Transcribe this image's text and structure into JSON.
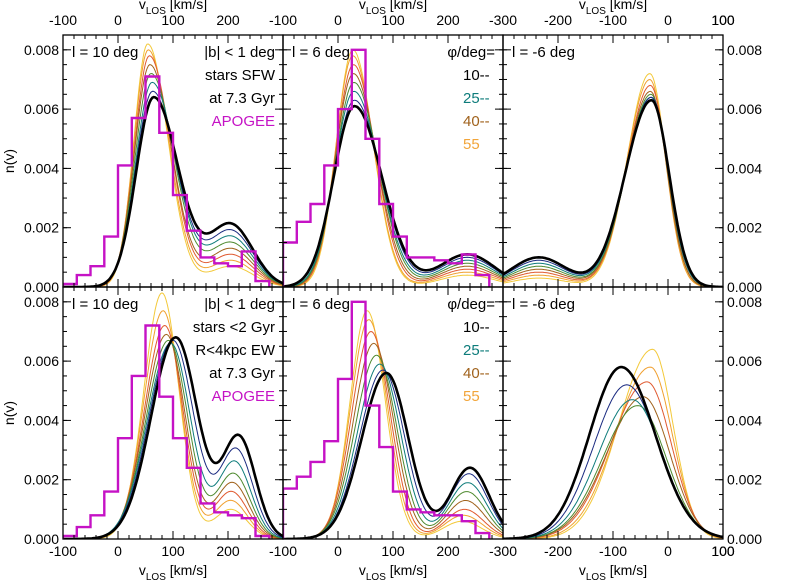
{
  "chart_data": {
    "type": "line",
    "layout": "2 rows x 3 columns of panels sharing axes",
    "colors": {
      "phi10": "#000080",
      "phi25": "#0e7c7b",
      "phi40": "#a0621c",
      "phi55": "#f2a53a",
      "apogee": "#c512c5",
      "thick": "#000000"
    },
    "axes": {
      "xlabel_main": "v",
      "xlabel_sub": "LOS",
      "xlabel_unit": "[km/s]",
      "ylabel": "n(v)",
      "ylim": [
        0,
        0.0085
      ],
      "yticks": [
        "0.000",
        "0.002",
        "0.004",
        "0.006",
        "0.008"
      ],
      "ytick_values": [
        0,
        0.002,
        0.004,
        0.006,
        0.008
      ],
      "columns": [
        {
          "xlim": [
            -100,
            300
          ],
          "xticks": [
            -100,
            0,
            100,
            200
          ]
        },
        {
          "xlim": [
            -100,
            300
          ],
          "xticks": [
            -100,
            0,
            100,
            200
          ]
        },
        {
          "xlim": [
            -300,
            100
          ],
          "xticks": [
            -300,
            -200,
            -100,
            0,
            100
          ]
        }
      ]
    },
    "legend": {
      "title": "φ/deg=",
      "entries": [
        {
          "label": "10--",
          "color": "#000000"
        },
        {
          "label": "25--",
          "color": "#0e7c7b"
        },
        {
          "label": "40--",
          "color": "#a0621c"
        },
        {
          "label": "55",
          "color": "#f2a53a"
        }
      ]
    },
    "series_colors": [
      "#000000",
      "#1a2a80",
      "#0e7c7b",
      "#4e8a2f",
      "#a0621c",
      "#e05a30",
      "#f0a030",
      "#f3c93a"
    ],
    "panels": [
      {
        "row": 0,
        "col": 0,
        "label": "l = 10 deg",
        "notes": [
          "|b| < 1 deg",
          "stars SFW",
          "at 7.3 Gyr",
          "APOGEE"
        ],
        "note_colors": [
          "#000000",
          "#000000",
          "#000000",
          "#c512c5"
        ],
        "curves": [
          {
            "mu": 65,
            "sigma_l": 32,
            "sigma_r": 45,
            "peak": 0.0064,
            "tail_c": 205,
            "tail_w": 40,
            "tail_h": 0.0021,
            "thick": true
          },
          {
            "mu": 63,
            "sigma_l": 31,
            "sigma_r": 44,
            "peak": 0.0066,
            "tail_c": 205,
            "tail_w": 40,
            "tail_h": 0.0019
          },
          {
            "mu": 62,
            "sigma_l": 30,
            "sigma_r": 43,
            "peak": 0.0069,
            "tail_c": 205,
            "tail_w": 40,
            "tail_h": 0.0017
          },
          {
            "mu": 60,
            "sigma_l": 29,
            "sigma_r": 42,
            "peak": 0.0072,
            "tail_c": 205,
            "tail_w": 40,
            "tail_h": 0.0015
          },
          {
            "mu": 58,
            "sigma_l": 28,
            "sigma_r": 40,
            "peak": 0.0075,
            "tail_c": 205,
            "tail_w": 40,
            "tail_h": 0.0013
          },
          {
            "mu": 57,
            "sigma_l": 27,
            "sigma_r": 39,
            "peak": 0.0078,
            "tail_c": 205,
            "tail_w": 40,
            "tail_h": 0.0011
          },
          {
            "mu": 55,
            "sigma_l": 26,
            "sigma_r": 38,
            "peak": 0.008,
            "tail_c": 205,
            "tail_w": 40,
            "tail_h": 0.0009
          },
          {
            "mu": 54,
            "sigma_l": 25,
            "sigma_r": 37,
            "peak": 0.0082,
            "tail_c": 205,
            "tail_w": 40,
            "tail_h": 0.0007
          }
        ],
        "histogram": {
          "edges": [
            -100,
            -75,
            -50,
            -25,
            0,
            25,
            50,
            75,
            100,
            125,
            150,
            175,
            200,
            225,
            250,
            275
          ],
          "counts": [
            0.0001,
            0.0004,
            0.0007,
            0.0017,
            0.0041,
            0.0057,
            0.0071,
            0.0052,
            0.0031,
            0.0019,
            0.001,
            0.0008,
            0.0007,
            0.0012,
            0.0002
          ]
        }
      },
      {
        "row": 0,
        "col": 1,
        "label": "l = 6 deg",
        "notes": [],
        "legend": true,
        "curves": [
          {
            "mu": 30,
            "sigma_l": 38,
            "sigma_r": 50,
            "peak": 0.0061,
            "tail_c": 235,
            "tail_w": 50,
            "tail_h": 0.0011,
            "thick": true
          },
          {
            "mu": 30,
            "sigma_l": 37,
            "sigma_r": 48,
            "peak": 0.0063,
            "tail_c": 235,
            "tail_w": 50,
            "tail_h": 0.001
          },
          {
            "mu": 29,
            "sigma_l": 35,
            "sigma_r": 46,
            "peak": 0.0066,
            "tail_c": 235,
            "tail_w": 50,
            "tail_h": 0.0009
          },
          {
            "mu": 29,
            "sigma_l": 34,
            "sigma_r": 44,
            "peak": 0.0069,
            "tail_c": 235,
            "tail_w": 50,
            "tail_h": 0.0008
          },
          {
            "mu": 28,
            "sigma_l": 33,
            "sigma_r": 42,
            "peak": 0.0072,
            "tail_c": 235,
            "tail_w": 50,
            "tail_h": 0.0007
          },
          {
            "mu": 28,
            "sigma_l": 32,
            "sigma_r": 40,
            "peak": 0.0075,
            "tail_c": 235,
            "tail_w": 50,
            "tail_h": 0.0006
          },
          {
            "mu": 27,
            "sigma_l": 31,
            "sigma_r": 38,
            "peak": 0.0078,
            "tail_c": 235,
            "tail_w": 50,
            "tail_h": 0.0005
          },
          {
            "mu": 27,
            "sigma_l": 30,
            "sigma_r": 37,
            "peak": 0.008,
            "tail_c": 235,
            "tail_w": 50,
            "tail_h": 0.0004
          }
        ],
        "histogram": {
          "edges": [
            -100,
            -75,
            -50,
            -25,
            0,
            25,
            50,
            75,
            100,
            125,
            150,
            175,
            200,
            225,
            250,
            275
          ],
          "counts": [
            0.0015,
            0.0022,
            0.0028,
            0.0041,
            0.006,
            0.008,
            0.005,
            0.0028,
            0.0017,
            0.001,
            0.001,
            0.0009,
            0.0008,
            0.0011,
            0.0004
          ]
        }
      },
      {
        "row": 0,
        "col": 2,
        "label": "l = -6 deg",
        "notes": [],
        "curves": [
          {
            "mu": -30,
            "sigma_l": 48,
            "sigma_r": 32,
            "peak": 0.0063,
            "tail_c": -235,
            "tail_w": 50,
            "tail_h": 0.001,
            "thick": true
          },
          {
            "mu": -30,
            "sigma_l": 47,
            "sigma_r": 32,
            "peak": 0.0064,
            "tail_c": -235,
            "tail_w": 50,
            "tail_h": 0.0009
          },
          {
            "mu": -31,
            "sigma_l": 46,
            "sigma_r": 31,
            "peak": 0.0064,
            "tail_c": -235,
            "tail_w": 50,
            "tail_h": 0.0008
          },
          {
            "mu": -31,
            "sigma_l": 45,
            "sigma_r": 31,
            "peak": 0.0065,
            "tail_c": -235,
            "tail_w": 50,
            "tail_h": 0.0007
          },
          {
            "mu": -32,
            "sigma_l": 44,
            "sigma_r": 30,
            "peak": 0.0066,
            "tail_c": -235,
            "tail_w": 50,
            "tail_h": 0.0006
          },
          {
            "mu": -32,
            "sigma_l": 43,
            "sigma_r": 30,
            "peak": 0.0068,
            "tail_c": -235,
            "tail_w": 50,
            "tail_h": 0.0005
          },
          {
            "mu": -33,
            "sigma_l": 42,
            "sigma_r": 29,
            "peak": 0.007,
            "tail_c": -235,
            "tail_w": 50,
            "tail_h": 0.0004
          },
          {
            "mu": -33,
            "sigma_l": 41,
            "sigma_r": 29,
            "peak": 0.0072,
            "tail_c": -235,
            "tail_w": 50,
            "tail_h": 0.0003
          }
        ]
      },
      {
        "row": 1,
        "col": 0,
        "label": "l = 10 deg",
        "notes": [
          "|b| < 1 deg",
          "stars <2 Gyr",
          "R<4kpc EW",
          "at 7.3 Gyr",
          "APOGEE"
        ],
        "note_colors": [
          "#000000",
          "#000000",
          "#000000",
          "#000000",
          "#c512c5"
        ],
        "curves": [
          {
            "mu": 105,
            "sigma_l": 45,
            "sigma_r": 40,
            "peak": 0.0068,
            "tail_c": 220,
            "tail_w": 30,
            "tail_h": 0.0034,
            "thick": true
          },
          {
            "mu": 100,
            "sigma_l": 44,
            "sigma_r": 38,
            "peak": 0.0067,
            "tail_c": 215,
            "tail_w": 30,
            "tail_h": 0.003
          },
          {
            "mu": 96,
            "sigma_l": 43,
            "sigma_r": 36,
            "peak": 0.0066,
            "tail_c": 212,
            "tail_w": 30,
            "tail_h": 0.0026
          },
          {
            "mu": 92,
            "sigma_l": 41,
            "sigma_r": 35,
            "peak": 0.0067,
            "tail_c": 210,
            "tail_w": 30,
            "tail_h": 0.0022
          },
          {
            "mu": 88,
            "sigma_l": 39,
            "sigma_r": 34,
            "peak": 0.0069,
            "tail_c": 208,
            "tail_w": 30,
            "tail_h": 0.0019
          },
          {
            "mu": 85,
            "sigma_l": 37,
            "sigma_r": 33,
            "peak": 0.0072,
            "tail_c": 206,
            "tail_w": 30,
            "tail_h": 0.0016
          },
          {
            "mu": 82,
            "sigma_l": 35,
            "sigma_r": 32,
            "peak": 0.0077,
            "tail_c": 205,
            "tail_w": 30,
            "tail_h": 0.0013
          },
          {
            "mu": 80,
            "sigma_l": 33,
            "sigma_r": 31,
            "peak": 0.0083,
            "tail_c": 205,
            "tail_w": 30,
            "tail_h": 0.001
          }
        ],
        "histogram": {
          "edges": [
            -100,
            -75,
            -50,
            -25,
            0,
            25,
            50,
            75,
            100,
            125,
            150,
            175,
            200,
            225,
            250,
            275
          ],
          "counts": [
            0.0001,
            0.0004,
            0.0008,
            0.0016,
            0.0034,
            0.0055,
            0.0072,
            0.0048,
            0.0034,
            0.0024,
            0.0012,
            0.0009,
            0.0008,
            0.0007,
            0.0001
          ]
        }
      },
      {
        "row": 1,
        "col": 1,
        "label": "l = 6 deg",
        "notes": [],
        "legend": true,
        "curves": [
          {
            "mu": 88,
            "sigma_l": 45,
            "sigma_r": 40,
            "peak": 0.0056,
            "tail_c": 240,
            "tail_w": 35,
            "tail_h": 0.0024,
            "thick": true
          },
          {
            "mu": 82,
            "sigma_l": 43,
            "sigma_r": 39,
            "peak": 0.0057,
            "tail_c": 238,
            "tail_w": 35,
            "tail_h": 0.0022
          },
          {
            "mu": 76,
            "sigma_l": 41,
            "sigma_r": 38,
            "peak": 0.0059,
            "tail_c": 236,
            "tail_w": 35,
            "tail_h": 0.0019
          },
          {
            "mu": 70,
            "sigma_l": 39,
            "sigma_r": 37,
            "peak": 0.0062,
            "tail_c": 234,
            "tail_w": 35,
            "tail_h": 0.0016
          },
          {
            "mu": 65,
            "sigma_l": 37,
            "sigma_r": 36,
            "peak": 0.0066,
            "tail_c": 232,
            "tail_w": 35,
            "tail_h": 0.0013
          },
          {
            "mu": 60,
            "sigma_l": 35,
            "sigma_r": 35,
            "peak": 0.007,
            "tail_c": 230,
            "tail_w": 35,
            "tail_h": 0.001
          },
          {
            "mu": 56,
            "sigma_l": 33,
            "sigma_r": 34,
            "peak": 0.0074,
            "tail_c": 228,
            "tail_w": 35,
            "tail_h": 0.0008
          },
          {
            "mu": 53,
            "sigma_l": 31,
            "sigma_r": 33,
            "peak": 0.0077,
            "tail_c": 226,
            "tail_w": 35,
            "tail_h": 0.0006
          }
        ],
        "histogram": {
          "edges": [
            -100,
            -75,
            -50,
            -25,
            0,
            25,
            50,
            75,
            100,
            125,
            150,
            175,
            200,
            225,
            250,
            275
          ],
          "counts": [
            0.0017,
            0.0021,
            0.0026,
            0.0033,
            0.0054,
            0.008,
            0.0045,
            0.0031,
            0.0016,
            0.001,
            0.0009,
            0.0008,
            0.0008,
            0.0006,
            0.0002
          ]
        }
      },
      {
        "row": 1,
        "col": 2,
        "label": "l = -6 deg",
        "notes": [],
        "curves": [
          {
            "mu": -85,
            "sigma_l": 58,
            "sigma_r": 62,
            "peak": 0.0058,
            "tail_c": -250,
            "tail_w": 30,
            "tail_h": 0.0,
            "thick": true
          },
          {
            "mu": -75,
            "sigma_l": 60,
            "sigma_r": 58,
            "peak": 0.0052,
            "tail_c": -250,
            "tail_w": 30,
            "tail_h": 0.0
          },
          {
            "mu": -65,
            "sigma_l": 62,
            "sigma_r": 55,
            "peak": 0.0047,
            "tail_c": -250,
            "tail_w": 30,
            "tail_h": 0.0
          },
          {
            "mu": -55,
            "sigma_l": 64,
            "sigma_r": 52,
            "peak": 0.0045,
            "tail_c": -250,
            "tail_w": 30,
            "tail_h": 0.0
          },
          {
            "mu": -45,
            "sigma_l": 66,
            "sigma_r": 48,
            "peak": 0.0048,
            "tail_c": -250,
            "tail_w": 30,
            "tail_h": 0.0
          },
          {
            "mu": -38,
            "sigma_l": 66,
            "sigma_r": 44,
            "peak": 0.0053,
            "tail_c": -250,
            "tail_w": 30,
            "tail_h": 0.0
          },
          {
            "mu": -32,
            "sigma_l": 64,
            "sigma_r": 40,
            "peak": 0.0058,
            "tail_c": -250,
            "tail_w": 30,
            "tail_h": 0.0
          },
          {
            "mu": -28,
            "sigma_l": 62,
            "sigma_r": 37,
            "peak": 0.0064,
            "tail_c": -250,
            "tail_w": 30,
            "tail_h": 0.0
          }
        ]
      }
    ]
  }
}
